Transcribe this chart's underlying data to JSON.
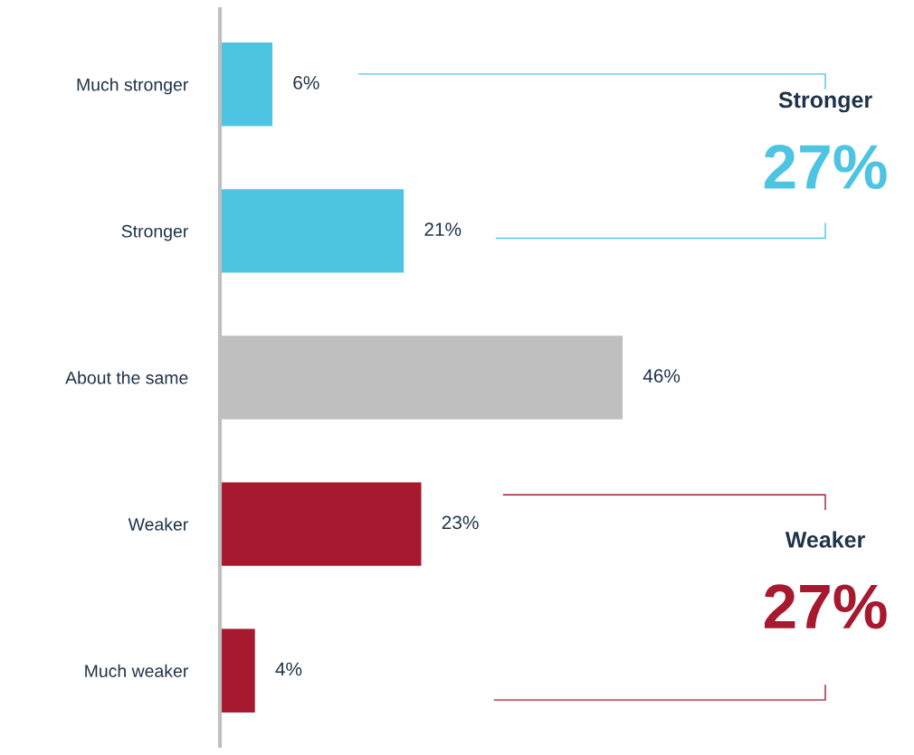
{
  "chart_data": {
    "type": "bar",
    "orientation": "horizontal",
    "categories": [
      "Much stronger",
      "Stronger",
      "About the same",
      "Weaker",
      "Much weaker"
    ],
    "values": [
      6,
      21,
      46,
      23,
      4
    ],
    "colors": [
      "#4dc5e2",
      "#4dc5e2",
      "#bfbfbf",
      "#a6192e",
      "#a6192e"
    ],
    "value_labels": [
      "6%",
      "21%",
      "46%",
      "23%",
      "4%"
    ],
    "annotations": [
      "Stronger",
      "27%",
      "Weaker",
      "27%"
    ],
    "grid": false,
    "legend": false
  }
}
